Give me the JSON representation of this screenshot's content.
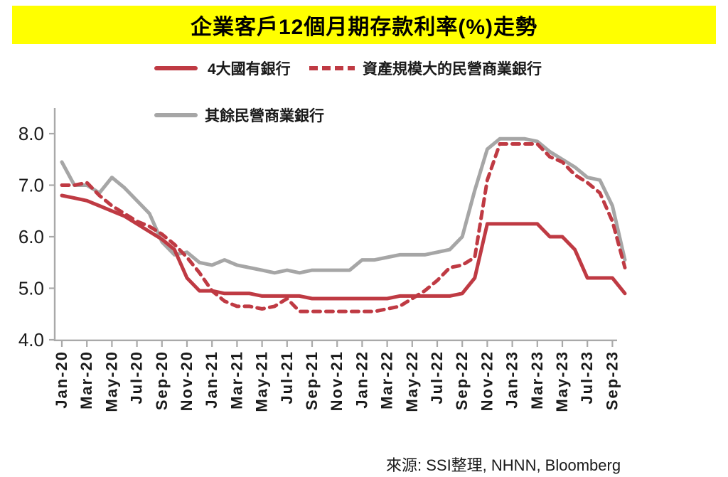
{
  "title": "企業客戶12個月期存款利率(%)走勢",
  "source": "來源: SSI整理, NHNN, Bloomberg",
  "colors": {
    "banner_yellow": "#FFFF00",
    "accent_red": "#BF3A43",
    "accent_gray": "#A6A6A6",
    "axis_gray": "#A9A9A9",
    "text_black": "#1A1A1A"
  },
  "legend": [
    {
      "id": "big4",
      "label": "4大國有銀行",
      "color": "#BF3A43",
      "style": "solid"
    },
    {
      "id": "large_private",
      "label": "資產規模大的民營商業銀行",
      "color": "#BF3A43",
      "style": "dashed"
    },
    {
      "id": "other_private",
      "label": "其餘民營商業銀行",
      "color": "#A6A6A6",
      "style": "solid"
    }
  ],
  "chart_data": {
    "type": "line",
    "title": "企業客戶12個月期存款利率(%)走勢",
    "xlabel": "",
    "ylabel": "",
    "unit": "%",
    "ylim": [
      4.0,
      8.0
    ],
    "y_ticks": [
      4.0,
      5.0,
      6.0,
      7.0,
      8.0
    ],
    "grid": false,
    "legend_position": "top",
    "x_interval": "monthly",
    "x_tick_labels": [
      "Jan-20",
      "Mar-20",
      "May-20",
      "Jul-20",
      "Sep-20",
      "Nov-20",
      "Jan-21",
      "Mar-21",
      "May-21",
      "Jul-21",
      "Sep-21",
      "Nov-21",
      "Jan-22",
      "Mar-22",
      "May-22",
      "Jul-22",
      "Sep-22",
      "Nov-22",
      "Jan-23",
      "Mar-23",
      "May-23",
      "Jul-23",
      "Sep-23"
    ],
    "x": [
      "Jan-20",
      "Feb-20",
      "Mar-20",
      "Apr-20",
      "May-20",
      "Jun-20",
      "Jul-20",
      "Aug-20",
      "Sep-20",
      "Oct-20",
      "Nov-20",
      "Dec-20",
      "Jan-21",
      "Feb-21",
      "Mar-21",
      "Apr-21",
      "May-21",
      "Jun-21",
      "Jul-21",
      "Aug-21",
      "Sep-21",
      "Oct-21",
      "Nov-21",
      "Dec-21",
      "Jan-22",
      "Feb-22",
      "Mar-22",
      "Apr-22",
      "May-22",
      "Jun-22",
      "Jul-22",
      "Aug-22",
      "Sep-22",
      "Oct-22",
      "Nov-22",
      "Dec-22",
      "Jan-23",
      "Feb-23",
      "Mar-23",
      "Apr-23",
      "May-23",
      "Jun-23",
      "Jul-23",
      "Aug-23",
      "Sep-23",
      "Oct-23"
    ],
    "series": [
      {
        "id": "other_private",
        "name": "其餘民營商業銀行",
        "color": "#A6A6A6",
        "dashed": false,
        "z": 1,
        "values": [
          7.45,
          7.0,
          7.0,
          6.85,
          7.15,
          6.95,
          6.7,
          6.45,
          5.9,
          5.65,
          5.7,
          5.5,
          5.45,
          5.55,
          5.45,
          5.4,
          5.35,
          5.3,
          5.35,
          5.3,
          5.35,
          5.35,
          5.35,
          5.35,
          5.55,
          5.55,
          5.6,
          5.65,
          5.65,
          5.65,
          5.7,
          5.75,
          6.0,
          6.9,
          7.7,
          7.9,
          7.9,
          7.9,
          7.85,
          7.65,
          7.5,
          7.35,
          7.15,
          7.1,
          6.6,
          5.55
        ]
      },
      {
        "id": "big4",
        "name": "4大國有銀行",
        "color": "#BF3A43",
        "dashed": false,
        "z": 2,
        "values": [
          6.8,
          6.75,
          6.7,
          6.6,
          6.5,
          6.4,
          6.25,
          6.1,
          5.95,
          5.75,
          5.2,
          4.95,
          4.95,
          4.9,
          4.9,
          4.9,
          4.85,
          4.85,
          4.85,
          4.85,
          4.8,
          4.8,
          4.8,
          4.8,
          4.8,
          4.8,
          4.8,
          4.85,
          4.85,
          4.85,
          4.85,
          4.85,
          4.9,
          5.2,
          6.25,
          6.25,
          6.25,
          6.25,
          6.25,
          6.0,
          6.0,
          5.75,
          5.2,
          5.2,
          5.2,
          4.9
        ]
      },
      {
        "id": "large_private",
        "name": "資產規模大的民營商業銀行",
        "color": "#BF3A43",
        "dashed": true,
        "z": 3,
        "values": [
          7.0,
          7.0,
          7.05,
          6.8,
          6.6,
          6.45,
          6.3,
          6.2,
          6.05,
          5.85,
          5.6,
          5.3,
          4.95,
          4.75,
          4.65,
          4.65,
          4.6,
          4.65,
          4.8,
          4.55,
          4.55,
          4.55,
          4.55,
          4.55,
          4.55,
          4.55,
          4.6,
          4.65,
          4.8,
          4.95,
          5.15,
          5.4,
          5.45,
          5.6,
          7.1,
          7.8,
          7.8,
          7.8,
          7.8,
          7.55,
          7.45,
          7.2,
          7.05,
          6.85,
          6.3,
          5.4
        ]
      }
    ]
  }
}
